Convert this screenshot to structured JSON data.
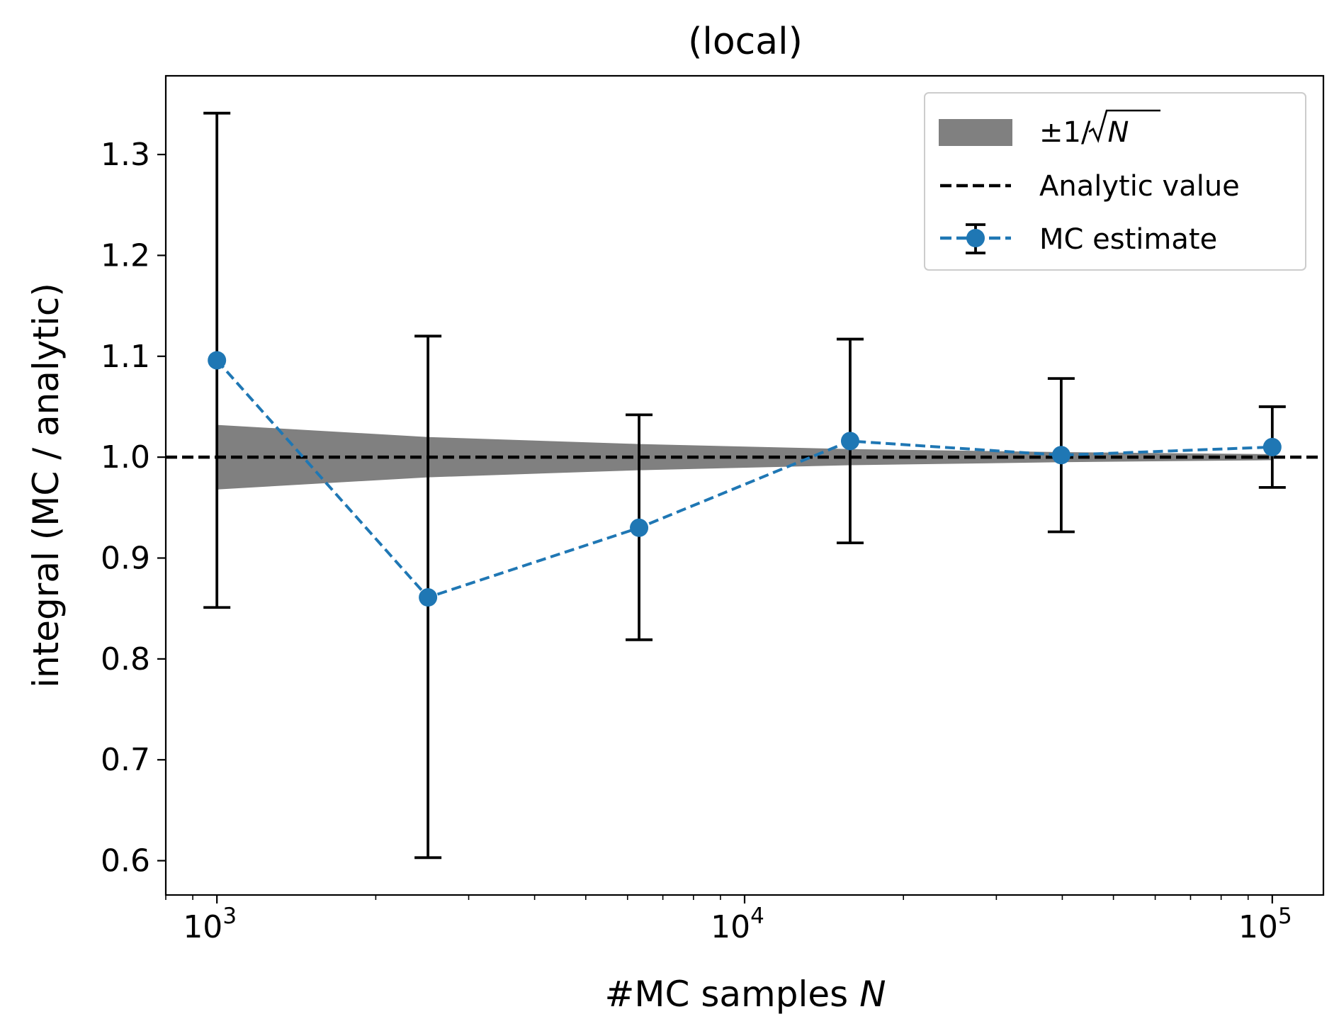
{
  "chart_data": {
    "type": "line",
    "title": "(local)",
    "xlabel": "#MC samples ",
    "xlabel_var": "N",
    "ylabel": "integral (MC / analytic)",
    "x_scale": "log",
    "xlim": [
      800,
      125000
    ],
    "ylim": [
      0.566,
      1.378
    ],
    "x_ticks": [
      {
        "value": 1000,
        "base": "10",
        "exp": "3"
      },
      {
        "value": 10000,
        "base": "10",
        "exp": "4"
      },
      {
        "value": 100000,
        "base": "10",
        "exp": "5"
      }
    ],
    "y_ticks": [
      0.6,
      0.7,
      0.8,
      0.9,
      1.0,
      1.1,
      1.2,
      1.3
    ],
    "y_tick_labels": [
      "0.6",
      "0.7",
      "0.8",
      "0.9",
      "1.0",
      "1.1",
      "1.2",
      "1.3"
    ],
    "grid": false,
    "legend_position": "top-right",
    "series": [
      {
        "name": "MC estimate",
        "style": "dashed-line-with-markers-and-errorbars",
        "color": "#1f77b4",
        "x": [
          1000,
          2512,
          6310,
          15849,
          39811,
          100000
        ],
        "y": [
          1.096,
          0.861,
          0.93,
          1.016,
          1.002,
          1.01
        ],
        "yerr_low": [
          0.851,
          0.603,
          0.819,
          0.915,
          0.926,
          0.97
        ],
        "yerr_high": [
          1.341,
          1.12,
          1.042,
          1.117,
          1.078,
          1.05
        ]
      },
      {
        "name": "Analytic value",
        "style": "dashed-line",
        "color": "#000000",
        "y_constant": 1.0
      },
      {
        "name": "±1/√N",
        "name_parts": {
          "prefix": "±1/",
          "var": "N"
        },
        "style": "filled-band",
        "color": "#808080",
        "x": [
          1000,
          2512,
          6310,
          15849,
          39811,
          100000
        ],
        "lower": [
          0.968,
          0.98,
          0.987,
          0.992,
          0.995,
          0.997
        ],
        "upper": [
          1.032,
          1.02,
          1.013,
          1.008,
          1.005,
          1.003
        ]
      }
    ]
  }
}
